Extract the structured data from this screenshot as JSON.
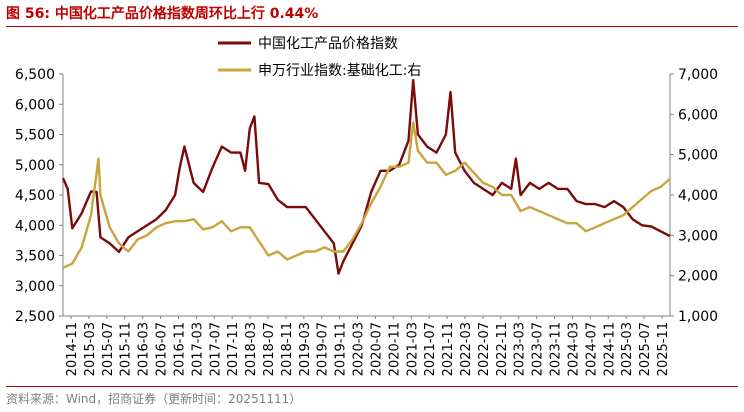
{
  "figure": {
    "title": "图 56:  中国化工产品价格指数周环比上行 0.44%",
    "source": "资料来源：Wind，招商证券（更新时间：20251111）",
    "title_color": "#C00000",
    "rule_color": "#C00000"
  },
  "chart_data": {
    "type": "line",
    "title": "中国化工产品价格指数周环比上行 0.44%",
    "xlabel": "",
    "ylabel_left": "",
    "ylabel_right": "",
    "ylim_left": [
      2500,
      6500
    ],
    "ylim_right": [
      1000,
      7000
    ],
    "yticks_left": [
      "6,500",
      "6,000",
      "5,500",
      "5,000",
      "4,500",
      "4,000",
      "3,500",
      "3,000",
      "2,500"
    ],
    "yticks_right": [
      "7,000",
      "6,000",
      "5,000",
      "4,000",
      "3,000",
      "2,000",
      "1,000"
    ],
    "x_labels": [
      "2014-11",
      "2015-03",
      "2015-07",
      "2015-11",
      "2016-03",
      "2016-07",
      "2016-11",
      "2017-03",
      "2017-07",
      "2017-11",
      "2018-03",
      "2018-07",
      "2018-11",
      "2019-03",
      "2019-07",
      "2019-11",
      "2020-03",
      "2020-07",
      "2020-11",
      "2021-03",
      "2021-07",
      "2021-11",
      "2022-03",
      "2022-07",
      "2022-11",
      "2023-03",
      "2023-07",
      "2023-11",
      "2024-03",
      "2024-07",
      "2024-11",
      "2025-03",
      "2025-07",
      "2025-11"
    ],
    "legend_position": "top-center",
    "grid": false,
    "series": [
      {
        "name": "中国化工产品价格指数",
        "axis": "left",
        "color": "#7B0A0A",
        "points": [
          [
            0,
            4780
          ],
          [
            0.5,
            4600
          ],
          [
            1,
            3950
          ],
          [
            2,
            4200
          ],
          [
            3,
            4560
          ],
          [
            3.6,
            4550
          ],
          [
            4,
            3800
          ],
          [
            5,
            3700
          ],
          [
            6,
            3560
          ],
          [
            7,
            3800
          ],
          [
            8,
            3900
          ],
          [
            9,
            4000
          ],
          [
            10,
            4100
          ],
          [
            11,
            4250
          ],
          [
            12,
            4500
          ],
          [
            12.5,
            4950
          ],
          [
            13,
            5300
          ],
          [
            14,
            4700
          ],
          [
            15,
            4550
          ],
          [
            16,
            4950
          ],
          [
            17,
            5300
          ],
          [
            18,
            5200
          ],
          [
            19,
            5200
          ],
          [
            19.5,
            4900
          ],
          [
            20,
            5600
          ],
          [
            20.5,
            5800
          ],
          [
            21,
            4700
          ],
          [
            22,
            4680
          ],
          [
            23,
            4420
          ],
          [
            24,
            4300
          ],
          [
            25,
            4300
          ],
          [
            26,
            4300
          ],
          [
            27,
            4100
          ],
          [
            28,
            3900
          ],
          [
            29,
            3700
          ],
          [
            29.5,
            3200
          ],
          [
            30,
            3400
          ],
          [
            31,
            3700
          ],
          [
            32,
            4000
          ],
          [
            33,
            4550
          ],
          [
            34,
            4900
          ],
          [
            35,
            4900
          ],
          [
            36,
            5000
          ],
          [
            37,
            5400
          ],
          [
            37.5,
            6400
          ],
          [
            38,
            5500
          ],
          [
            39,
            5300
          ],
          [
            40,
            5200
          ],
          [
            41,
            5500
          ],
          [
            41.5,
            6200
          ],
          [
            42,
            5200
          ],
          [
            43,
            4900
          ],
          [
            44,
            4700
          ],
          [
            45,
            4600
          ],
          [
            46,
            4500
          ],
          [
            47,
            4700
          ],
          [
            48,
            4600
          ],
          [
            48.5,
            5100
          ],
          [
            49,
            4500
          ],
          [
            50,
            4700
          ],
          [
            51,
            4600
          ],
          [
            52,
            4700
          ],
          [
            53,
            4600
          ],
          [
            54,
            4600
          ],
          [
            55,
            4400
          ],
          [
            56,
            4350
          ],
          [
            57,
            4350
          ],
          [
            58,
            4300
          ],
          [
            59,
            4400
          ],
          [
            60,
            4300
          ],
          [
            61,
            4100
          ],
          [
            62,
            4000
          ],
          [
            63,
            3980
          ],
          [
            64,
            3900
          ],
          [
            65,
            3820
          ]
        ]
      },
      {
        "name": "申万行业指数:基础化工:右",
        "axis": "right",
        "color": "#C9A43D",
        "points": [
          [
            0,
            2200
          ],
          [
            1,
            2300
          ],
          [
            2,
            2700
          ],
          [
            3,
            3500
          ],
          [
            3.8,
            4900
          ],
          [
            4,
            4000
          ],
          [
            5,
            3200
          ],
          [
            6,
            2800
          ],
          [
            7,
            2600
          ],
          [
            8,
            2900
          ],
          [
            9,
            3000
          ],
          [
            10,
            3200
          ],
          [
            11,
            3300
          ],
          [
            12,
            3350
          ],
          [
            13,
            3350
          ],
          [
            14,
            3400
          ],
          [
            15,
            3150
          ],
          [
            16,
            3200
          ],
          [
            17,
            3350
          ],
          [
            18,
            3100
          ],
          [
            19,
            3200
          ],
          [
            20,
            3200
          ],
          [
            21,
            2850
          ],
          [
            22,
            2500
          ],
          [
            23,
            2600
          ],
          [
            24,
            2400
          ],
          [
            25,
            2500
          ],
          [
            26,
            2600
          ],
          [
            27,
            2600
          ],
          [
            28,
            2700
          ],
          [
            29,
            2600
          ],
          [
            30,
            2600
          ],
          [
            31,
            2900
          ],
          [
            32,
            3300
          ],
          [
            33,
            3800
          ],
          [
            34,
            4200
          ],
          [
            35,
            4700
          ],
          [
            36,
            4700
          ],
          [
            37,
            4800
          ],
          [
            37.5,
            5800
          ],
          [
            38,
            5100
          ],
          [
            39,
            4800
          ],
          [
            40,
            4800
          ],
          [
            41,
            4500
          ],
          [
            42,
            4600
          ],
          [
            43,
            4800
          ],
          [
            44,
            4550
          ],
          [
            45,
            4300
          ],
          [
            46,
            4200
          ],
          [
            47,
            4000
          ],
          [
            48,
            4000
          ],
          [
            49,
            3600
          ],
          [
            50,
            3700
          ],
          [
            51,
            3600
          ],
          [
            52,
            3500
          ],
          [
            53,
            3400
          ],
          [
            54,
            3300
          ],
          [
            55,
            3300
          ],
          [
            56,
            3100
          ],
          [
            57,
            3200
          ],
          [
            58,
            3300
          ],
          [
            59,
            3400
          ],
          [
            60,
            3500
          ],
          [
            61,
            3700
          ],
          [
            62,
            3900
          ],
          [
            63,
            4100
          ],
          [
            64,
            4200
          ],
          [
            65,
            4400
          ]
        ]
      }
    ]
  }
}
